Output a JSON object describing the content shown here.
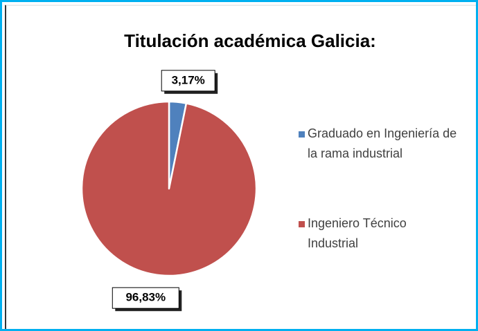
{
  "chart_data": {
    "type": "pie",
    "title": "Titulación académica Galicia:",
    "categories": [
      "Graduado en Ingeniería de la rama industrial",
      "Ingeniero Técnico Industrial"
    ],
    "values": [
      3.17,
      96.83
    ],
    "value_labels": [
      "3,17%",
      "96,83%"
    ],
    "colors": [
      "#4f81bd",
      "#c0504d"
    ],
    "legend": "right"
  }
}
